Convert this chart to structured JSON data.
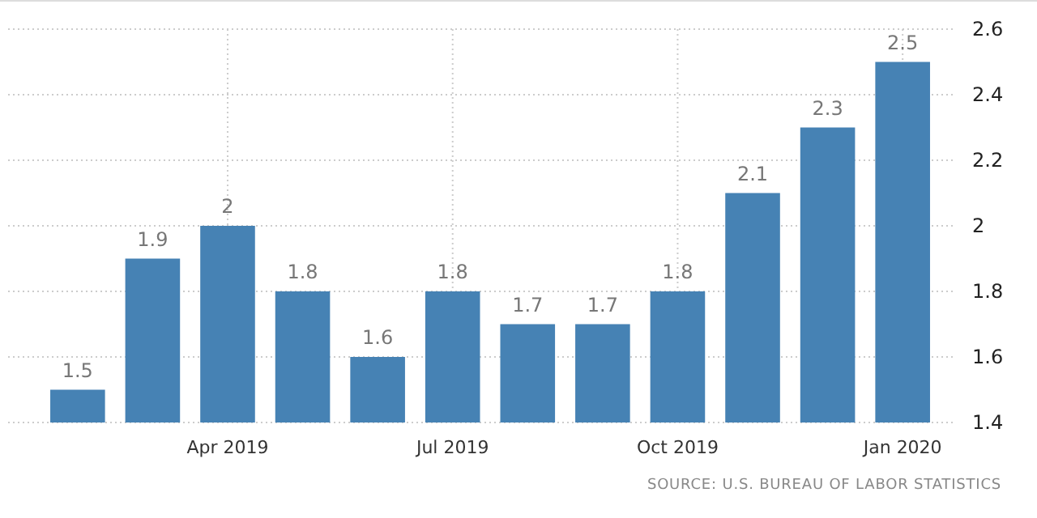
{
  "chart_data": {
    "type": "bar",
    "categories": [
      null,
      null,
      "Apr 2019",
      null,
      null,
      "Jul 2019",
      null,
      null,
      "Oct 2019",
      null,
      null,
      "Jan 2020"
    ],
    "values": [
      1.5,
      1.9,
      2,
      1.8,
      1.6,
      1.8,
      1.7,
      1.7,
      1.8,
      2.1,
      2.3,
      2.5
    ],
    "color": "#4682b4",
    "ylim": [
      1.4,
      2.6
    ],
    "yticks": [
      1.4,
      1.6,
      1.8,
      2,
      2.2,
      2.4,
      2.6
    ],
    "grid": true,
    "data_labels": true,
    "annotations": [
      "SOURCE: U.S. BUREAU OF LABOR STATISTICS"
    ]
  }
}
